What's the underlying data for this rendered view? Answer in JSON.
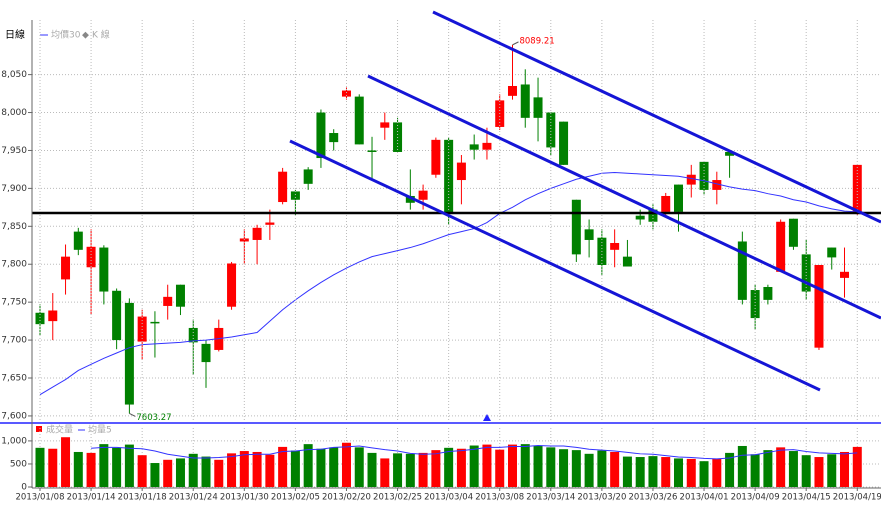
{
  "chart_data": [
    {
      "type": "candlestick",
      "title": "日線",
      "ylim": [
        7592,
        8122
      ],
      "yticks": [
        {
          "value": 7600,
          "label": "7,600"
        },
        {
          "value": 7650,
          "label": "7,650"
        },
        {
          "value": 7700,
          "label": "7,700"
        },
        {
          "value": 7750,
          "label": "7,750"
        },
        {
          "value": 7800,
          "label": "7,800"
        },
        {
          "value": 7850,
          "label": "7,850"
        },
        {
          "value": 7900,
          "label": "7,900"
        },
        {
          "value": 7950,
          "label": "7,950"
        },
        {
          "value": 8000,
          "label": "8,000"
        },
        {
          "value": 8050,
          "label": "8,050"
        }
      ],
      "grid": true,
      "candles": {
        "name": "K 線",
        "up_color": "#ff0000",
        "down_color": "#008000",
        "open": [
          7736,
          7725,
          7780,
          7843,
          7796,
          7822,
          7765,
          7749,
          7698,
          7724,
          7745,
          7773,
          7716,
          7695,
          7687,
          7744,
          7830,
          7832,
          7852,
          7882,
          7896,
          7925,
          8000,
          7973,
          8021,
          8021,
          7950,
          7980,
          7987,
          7890,
          7885,
          7918,
          7964,
          7911,
          7958,
          7951,
          7981,
          8022,
          8037,
          8020,
          8000,
          7988,
          7885,
          7846,
          7835,
          7819,
          7810,
          7864,
          7872,
          7869,
          7905,
          7905,
          7935,
          7898,
          7948,
          7830,
          7766,
          7770,
          7790,
          7860,
          7813,
          7690,
          7822,
          7782,
          7868
        ],
        "high": [
          7747,
          7762,
          7826,
          7848,
          7846,
          7825,
          7768,
          7755,
          7740,
          7738,
          7773,
          7773,
          7727,
          7700,
          7727,
          7803,
          7846,
          7852,
          7872,
          7927,
          7898,
          7928,
          8004,
          7978,
          8033,
          8024,
          7968,
          8000,
          7993,
          7925,
          7905,
          7967,
          7967,
          7944,
          7971,
          7980,
          8024,
          8089.21,
          8057,
          8046,
          8000,
          7988,
          7885,
          7859,
          7846,
          7846,
          7832,
          7872,
          7879,
          7894,
          7905,
          7931,
          7935,
          7922,
          7951,
          7843,
          7773,
          7773,
          7859,
          7860,
          7832,
          7799,
          7822,
          7822,
          7931
        ],
        "low": [
          7706,
          7700,
          7760,
          7812,
          7734,
          7747,
          7688,
          7603.27,
          7674,
          7677,
          7727,
          7733,
          7654,
          7637,
          7685,
          7740,
          7800,
          7800,
          7832,
          7879,
          7865,
          7898,
          7927,
          7950,
          8017,
          7958,
          7912,
          7964,
          7948,
          7872,
          7872,
          7914,
          7852,
          7879,
          7938,
          7938,
          7977,
          8017,
          7980,
          7962,
          7944,
          7931,
          7803,
          7809,
          7786,
          7796,
          7797,
          7852,
          7846,
          7865,
          7843,
          7888,
          7891,
          7879,
          7914,
          7747,
          7714,
          7747,
          7790,
          7819,
          7753,
          7687,
          7793,
          7756,
          7865
        ],
        "close": [
          7721,
          7739,
          7810,
          7819,
          7823,
          7764,
          7700,
          7615,
          7731,
          7722,
          7757,
          7744,
          7697,
          7671,
          7716,
          7801,
          7834,
          7848,
          7855,
          7922,
          7885,
          7906,
          7940,
          7961,
          8029,
          7958,
          7948,
          7987,
          7948,
          7881,
          7897,
          7964,
          7868,
          7934,
          7951,
          7960,
          8016,
          8035,
          7993,
          7993,
          7954,
          7931,
          7813,
          7832,
          7799,
          7828,
          7797,
          7859,
          7856,
          7890,
          7869,
          7918,
          7898,
          7911,
          7943,
          7753,
          7729,
          7753,
          7856,
          7823,
          7764,
          7799,
          7809,
          7790,
          7931
        ]
      },
      "series": [
        {
          "name": "均價30",
          "color": "#3333ff",
          "values": [
            7628,
            7638,
            7648,
            7660,
            7668,
            7676,
            7683,
            7690,
            7694,
            7695,
            7696,
            7697,
            7699,
            7700,
            7702,
            7704,
            7707,
            7710,
            7725,
            7740,
            7753,
            7765,
            7776,
            7786,
            7795,
            7803,
            7810,
            7814,
            7818,
            7822,
            7827,
            7833,
            7839,
            7843,
            7847,
            7855,
            7867,
            7875,
            7885,
            7893,
            7900,
            7906,
            7912,
            7916,
            7920,
            7921,
            7920,
            7919,
            7918,
            7917,
            7916,
            7913,
            7910,
            7906,
            7902,
            7899,
            7897,
            7893,
            7890,
            7885,
            7882,
            7877,
            7873,
            7870,
            7869
          ]
        }
      ]
    },
    {
      "type": "bar",
      "categories": [
        "2013/01/08",
        null,
        null,
        null,
        "2013/01/14",
        null,
        null,
        null,
        "2013/01/18",
        null,
        null,
        null,
        "2013/01/24",
        null,
        null,
        null,
        "2013/01/30",
        null,
        null,
        null,
        "2013/02/05",
        null,
        null,
        null,
        "2013/02/20",
        null,
        null,
        null,
        "2013/02/25",
        null,
        null,
        null,
        "2013/03/04",
        null,
        null,
        null,
        "2013/03/08",
        null,
        null,
        null,
        "2013/03/14",
        null,
        null,
        null,
        "2013/03/20",
        null,
        null,
        null,
        "2013/03/26",
        null,
        null,
        null,
        "2013/04/01",
        null,
        null,
        null,
        "2013/04/09",
        null,
        null,
        null,
        "2013/04/15",
        null,
        null,
        null,
        "2013/04/19"
      ],
      "ylim": [
        0,
        1280
      ],
      "yticks": [
        0,
        500,
        {
          "value": 1000,
          "label": "1,000"
        }
      ],
      "grid": true,
      "series": [
        {
          "name": "成交量",
          "color": "#ff0000",
          "values": [
            850,
            830,
            1080,
            760,
            740,
            930,
            850,
            920,
            690,
            520,
            590,
            620,
            720,
            660,
            590,
            730,
            780,
            760,
            700,
            870,
            790,
            930,
            830,
            860,
            960,
            860,
            740,
            620,
            730,
            720,
            740,
            800,
            850,
            830,
            900,
            920,
            810,
            920,
            930,
            900,
            860,
            820,
            800,
            720,
            790,
            760,
            660,
            650,
            670,
            650,
            620,
            610,
            560,
            610,
            740,
            890,
            710,
            800,
            860,
            780,
            690,
            650,
            710,
            760,
            870
          ]
        },
        {
          "name": "均量5",
          "color": "#3333ff",
          "values": [
            null,
            null,
            null,
            null,
            840,
            860,
            860,
            840,
            830,
            780,
            710,
            670,
            630,
            630,
            640,
            660,
            700,
            710,
            710,
            770,
            780,
            810,
            820,
            860,
            870,
            890,
            850,
            810,
            780,
            730,
            710,
            720,
            770,
            790,
            820,
            860,
            860,
            880,
            880,
            900,
            890,
            890,
            860,
            820,
            800,
            780,
            750,
            720,
            710,
            680,
            650,
            640,
            620,
            610,
            630,
            690,
            700,
            750,
            800,
            810,
            770,
            740,
            730,
            720,
            740
          ]
        }
      ]
    }
  ]
}
